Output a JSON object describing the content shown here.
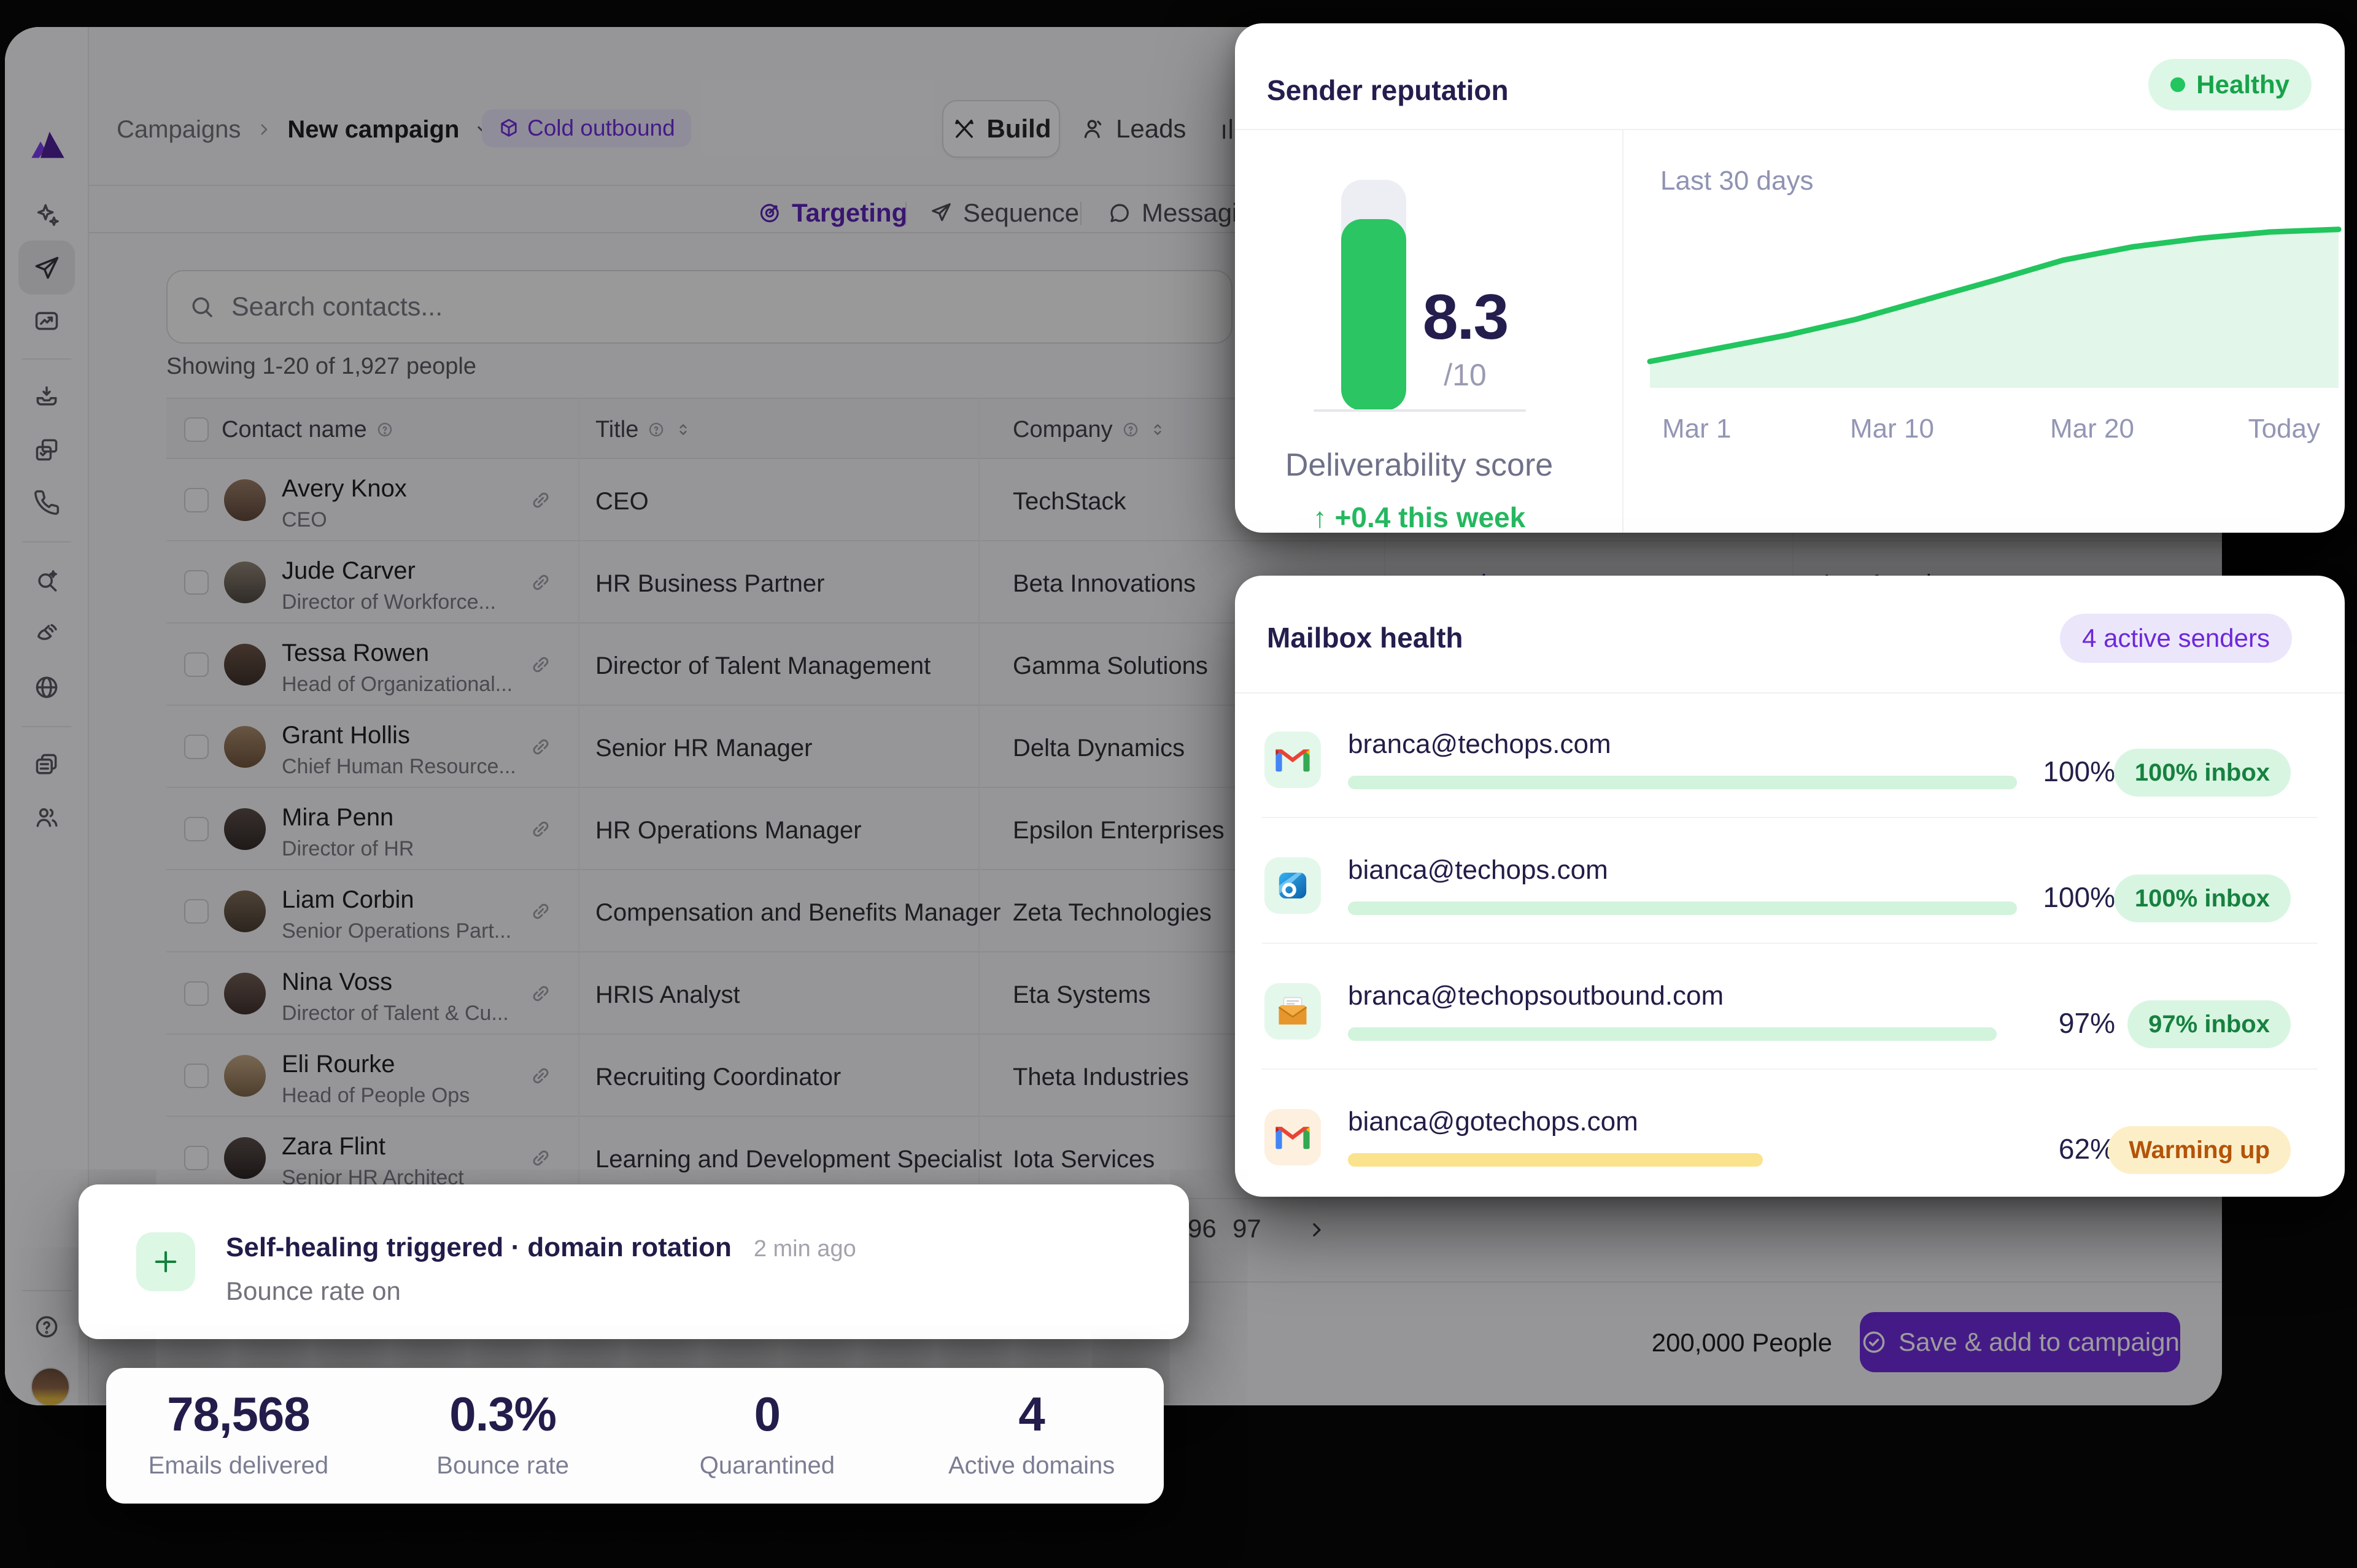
{
  "colors": {
    "accent": "#6d28d9",
    "green": "#22c55e",
    "navy": "#241e4e"
  },
  "sidebar": {
    "icons": [
      "logo",
      "sparkles-icon",
      "send-icon",
      "image-trend-icon",
      "inbox-icon",
      "copy-check-icon",
      "phone-icon",
      "search-sparkle-icon",
      "satellite-icon",
      "globe-icon",
      "list-card-icon",
      "people-icon",
      "help-icon"
    ],
    "active_item": "send"
  },
  "header": {
    "breadcrumb_root": "Campaigns",
    "breadcrumb_current": "New campaign",
    "badge": "Cold outbound",
    "tab_build": "Build",
    "tab_leads": "Leads"
  },
  "subtabs": {
    "targeting": "Targeting",
    "sequence": "Sequence",
    "messaging": "Messaging"
  },
  "search": {
    "placeholder": "Search contacts..."
  },
  "list": {
    "summary": "Showing 1-20 of 1,927 people",
    "col_contact": "Contact name",
    "col_title": "Title",
    "col_company": "Company",
    "rows": [
      {
        "name": "Avery Knox",
        "subtitle": "CEO",
        "title": "CEO",
        "company": "TechStack",
        "website": "",
        "location": ""
      },
      {
        "name": "Jude Carver",
        "subtitle": "Director of Workforce...",
        "title": "HR Business Partner",
        "company": "Beta Innovations",
        "website": "example.com",
        "location": "Los Angeles"
      },
      {
        "name": "Tessa Rowen",
        "subtitle": "Head of Organizational...",
        "title": "Director of Talent Management",
        "company": "Gamma Solutions",
        "website": "",
        "location": ""
      },
      {
        "name": "Grant Hollis",
        "subtitle": "Chief Human Resource...",
        "title": "Senior HR Manager",
        "company": "Delta Dynamics",
        "website": "",
        "location": ""
      },
      {
        "name": "Mira Penn",
        "subtitle": "Director of HR",
        "title": "HR Operations Manager",
        "company": "Epsilon Enterprises",
        "website": "",
        "location": ""
      },
      {
        "name": "Liam Corbin",
        "subtitle": "Senior Operations Part...",
        "title": "Compensation and Benefits Manager",
        "company": "Zeta Technologies",
        "website": "",
        "location": ""
      },
      {
        "name": "Nina Voss",
        "subtitle": "Director of Talent & Cu...",
        "title": "HRIS Analyst",
        "company": "Eta Systems",
        "website": "",
        "location": ""
      },
      {
        "name": "Eli Rourke",
        "subtitle": "Head of People Ops",
        "title": "Recruiting Coordinator",
        "company": "Theta Industries",
        "website": "",
        "location": ""
      },
      {
        "name": "Zara Flint",
        "subtitle": "Senior HR Architect",
        "title": "Learning and Development Specialist",
        "company": "Iota Services",
        "website": "",
        "location": ""
      }
    ]
  },
  "pagination": {
    "p1": "96",
    "p2": "97"
  },
  "footer": {
    "count": "200,000 People",
    "save": "Save & add to campaign"
  },
  "sender": {
    "title": "Sender reputation",
    "status": "Healthy",
    "score": "8.3",
    "max": "/10",
    "label": "Deliverability score",
    "delta_arrow": "↑",
    "delta": "+0.4 this week",
    "range": "Last 30 days",
    "t1": "Mar 1",
    "t2": "Mar 10",
    "t3": "Mar 20",
    "t4": "Today"
  },
  "mailbox": {
    "title": "Mailbox health",
    "badge": "4 active senders",
    "senders": [
      {
        "email": "branca@techops.com",
        "pct": 100,
        "pct_label": "100%",
        "status": "100% inbox",
        "provider": "gmail",
        "tone": "green"
      },
      {
        "email": "bianca@techops.com",
        "pct": 100,
        "pct_label": "100%",
        "status": "100% inbox",
        "provider": "outlook",
        "tone": "green"
      },
      {
        "email": "branca@techopsoutbound.com",
        "pct": 97,
        "pct_label": "97%",
        "status": "97% inbox",
        "provider": "envelope",
        "tone": "green"
      },
      {
        "email": "bianca@gotechops.com",
        "pct": 62,
        "pct_label": "62%",
        "status": "Warming up",
        "provider": "gmail",
        "tone": "amber"
      }
    ]
  },
  "toast": {
    "title": "Self-healing triggered · domain rotation",
    "time": "2 min ago",
    "subtitle": "Bounce rate on"
  },
  "stats": [
    {
      "value": "78,568",
      "label": "Emails delivered"
    },
    {
      "value": "0.3%",
      "label": "Bounce rate"
    },
    {
      "value": "0",
      "label": "Quarantined"
    },
    {
      "value": "4",
      "label": "Active domains"
    }
  ],
  "chart_data": [
    {
      "type": "area",
      "title": "Last 30 days",
      "series_name": "Deliverability score",
      "x_ticks": [
        "Mar 1",
        "Mar 10",
        "Mar 20",
        "Today"
      ],
      "values": [
        6.8,
        6.95,
        7.1,
        7.28,
        7.5,
        7.72,
        7.95,
        8.1,
        8.2,
        8.27,
        8.3
      ],
      "ylim": [
        6.5,
        8.5
      ],
      "grid": false,
      "line_color": "#22c55e",
      "fill_color": "#e2f6e9"
    },
    {
      "type": "gauge",
      "label": "Deliverability score",
      "value": 8.3,
      "max": 10,
      "delta": "+0.4 this week"
    }
  ]
}
